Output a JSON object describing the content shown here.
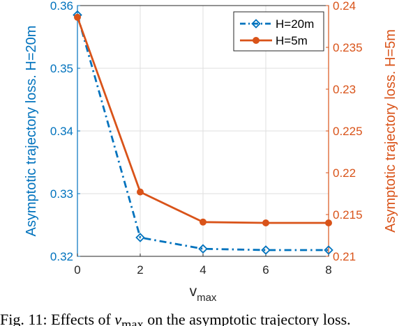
{
  "chart_data": {
    "type": "line",
    "x": [
      0,
      2,
      4,
      6,
      8
    ],
    "xlabel": "v",
    "xlabel_sub": "max",
    "xlim": [
      0,
      8
    ],
    "xticks": [
      "0",
      "2",
      "4",
      "6",
      "8"
    ],
    "grid": true,
    "legend_placement": "top-right",
    "axes": {
      "left": {
        "ylabel": "Asymptotic trajectory loss. H=20m",
        "ylim": [
          0.32,
          0.36
        ],
        "ticks": [
          "0.32",
          "0.33",
          "0.34",
          "0.35",
          "0.36"
        ],
        "color": "#0072BD"
      },
      "right": {
        "ylabel": "Asymptotic trajectory loss. H=5m",
        "ylim": [
          0.21,
          0.24
        ],
        "ticks": [
          "0.21",
          "0.215",
          "0.22",
          "0.225",
          "0.23",
          "0.235",
          "0.24"
        ],
        "color": "#D95319"
      }
    },
    "series": [
      {
        "name": "H=20m",
        "axis": "left",
        "values": [
          0.3585,
          0.323,
          0.3212,
          0.321,
          0.321
        ],
        "color": "#0072BD",
        "line_style": "dash-dot",
        "marker": "diamond"
      },
      {
        "name": "H=5m",
        "axis": "right",
        "values": [
          0.2386,
          0.2177,
          0.2141,
          0.214,
          0.214
        ],
        "color": "#D95319",
        "line_style": "solid",
        "marker": "circle"
      }
    ]
  },
  "caption": {
    "prefix": "Fig. 11: Effects of ",
    "symbol": "v",
    "symbol_sub": "max",
    "suffix": " on the asymptotic trajectory loss."
  }
}
